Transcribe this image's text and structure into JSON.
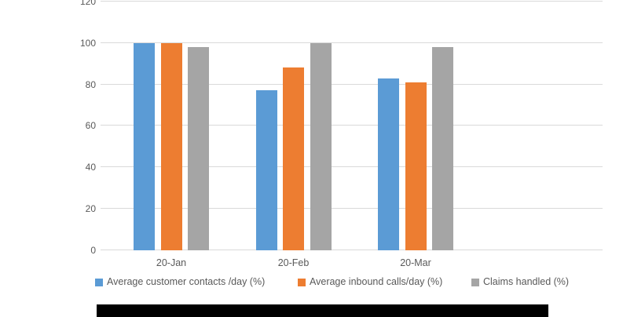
{
  "chart_data": {
    "type": "bar",
    "title": "",
    "categories": [
      "20-Jan",
      "20-Feb",
      "20-Mar"
    ],
    "series": [
      {
        "name": "Average customer contacts /day (%)",
        "color": "#5B9BD5",
        "values": [
          100,
          77,
          83
        ]
      },
      {
        "name": "Average inbound calls/day (%)",
        "color": "#ED7D31",
        "values": [
          100,
          88,
          81
        ]
      },
      {
        "name": "Claims handled (%)",
        "color": "#A5A5A5",
        "values": [
          98,
          100,
          98
        ]
      }
    ],
    "ylim": [
      0,
      120
    ],
    "yticks": [
      0,
      20,
      40,
      60,
      80,
      100,
      120
    ],
    "ytick_labels": [
      "0",
      "20",
      "40",
      "60",
      "80",
      "100",
      "120"
    ],
    "grid": true,
    "legend_position": "bottom",
    "legend_entries": [
      "Average customer contacts /day (%)",
      "Average inbound calls/day (%)",
      "Claims handled (%)"
    ]
  },
  "colors": {
    "gridline": "#D9D9D9",
    "axis_line": "#D9D9D9",
    "axis_text": "#595959",
    "legend_text": "#595959",
    "background": "#FFFFFF",
    "redaction": "#000000"
  }
}
